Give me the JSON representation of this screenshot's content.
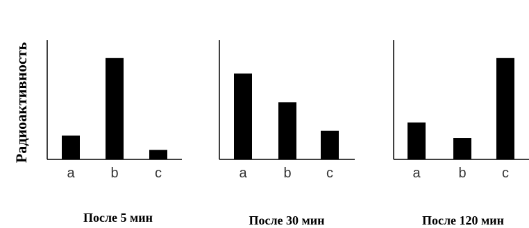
{
  "chart_data": {
    "ylabel": "Радиоактивность",
    "panels": [
      {
        "type": "bar",
        "caption": "После 5 мин",
        "categories": [
          "a",
          "b",
          "c"
        ],
        "values": [
          0.2,
          0.85,
          0.08
        ],
        "ylim": [
          0,
          1
        ]
      },
      {
        "type": "bar",
        "caption": "После 30 мин",
        "categories": [
          "a",
          "b",
          "c"
        ],
        "values": [
          0.72,
          0.48,
          0.24
        ],
        "ylim": [
          0,
          1
        ]
      },
      {
        "type": "bar",
        "caption": "После 120 мин",
        "categories": [
          "a",
          "b",
          "c"
        ],
        "values": [
          0.31,
          0.18,
          0.85
        ],
        "ylim": [
          0,
          1
        ]
      }
    ]
  }
}
